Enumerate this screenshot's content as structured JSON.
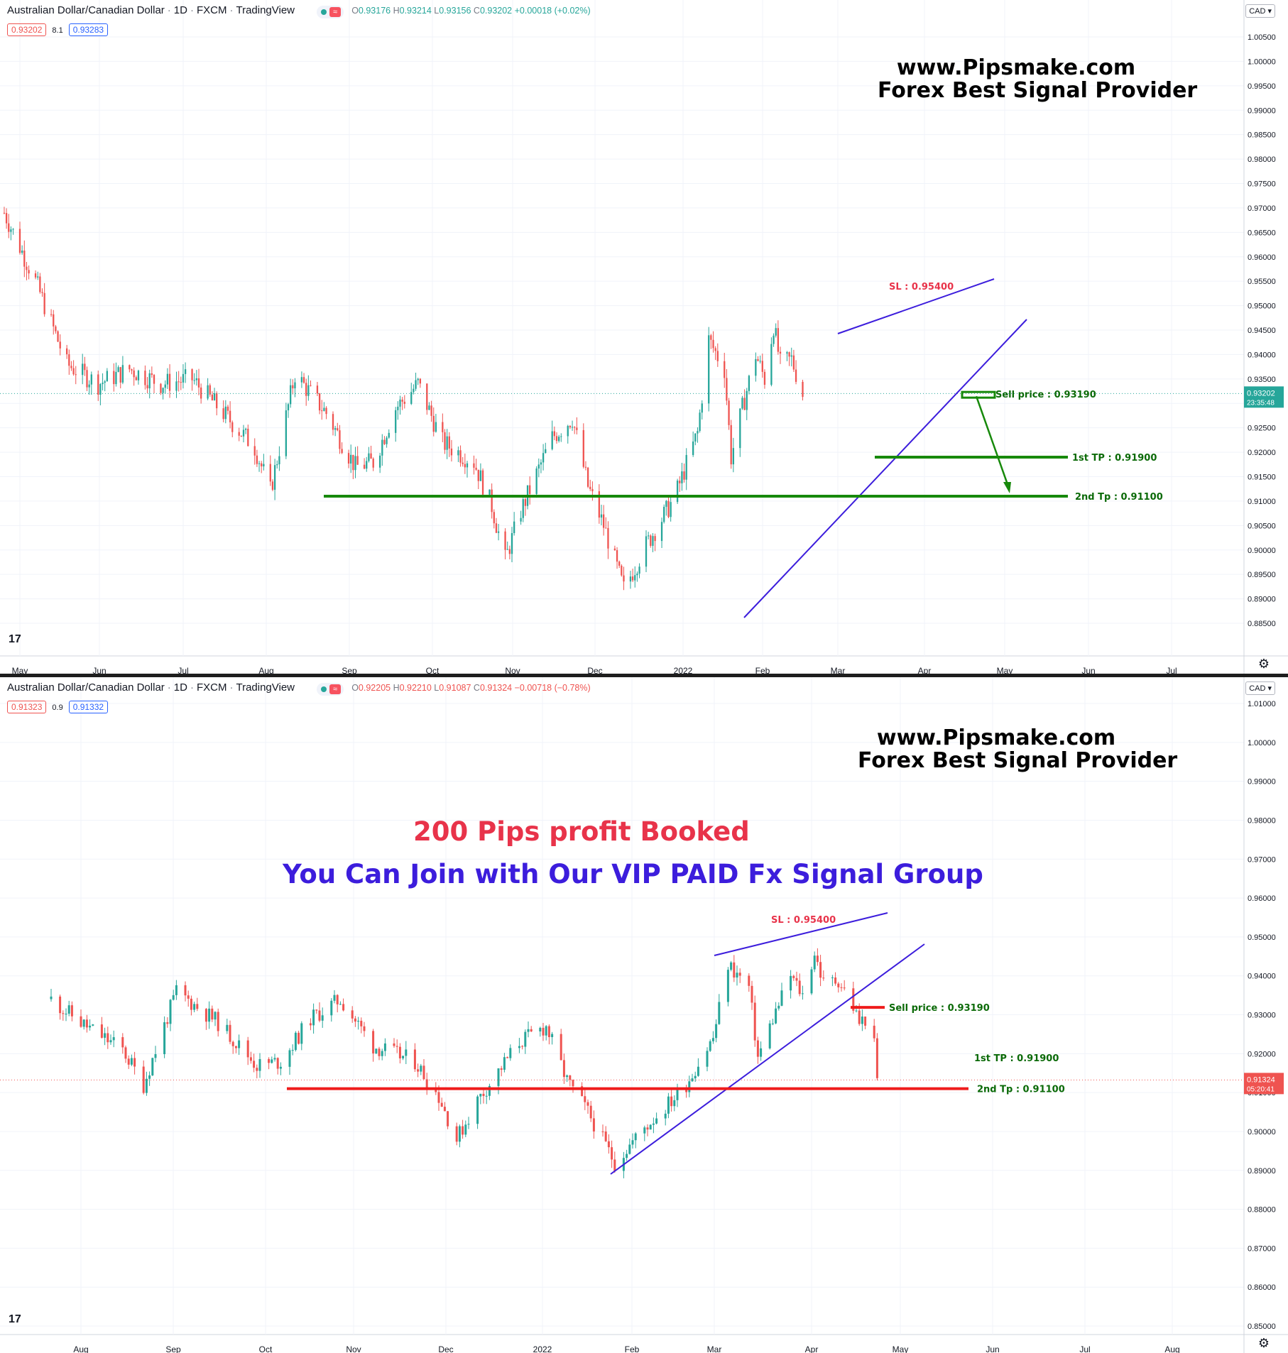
{
  "colors": {
    "up": "#26a69a",
    "down": "#ef5350",
    "trend": "#3c1ddc",
    "target_top": "#17890b",
    "target_bottom": "#ef1c1c",
    "sl": "#e8334a",
    "tp_text": "#0b6a08",
    "grid": "#f0f3fa"
  },
  "top": {
    "header": {
      "symbol": "Australian Dollar/Canadian Dollar",
      "interval": "1D",
      "exchange": "FXCM",
      "platform": "TradingView",
      "pill": "≈",
      "o": "O",
      "o_val": "0.93176",
      "h": "H",
      "h_val": "0.93214",
      "l": "L",
      "l_val": "0.93156",
      "c": "C",
      "c_val": "0.93202",
      "chg": "+0.00018 (+0.02%)"
    },
    "bid": "0.93202",
    "spread": "8.1",
    "ask": "0.93283",
    "currency": "CAD ▾",
    "brand_line1": "www.Pipsmake.com",
    "brand_line2": "Forex Best Signal Provider",
    "last_price": "0.93202",
    "countdown": "23:35:48",
    "ann": {
      "sl": "SL :  0.95400",
      "sell": "Sell  price : 0.93190",
      "tp1": "1st TP : 0.91900",
      "tp2": "2nd Tp : 0.91100"
    }
  },
  "bottom": {
    "header": {
      "symbol": "Australian Dollar/Canadian Dollar",
      "interval": "1D",
      "exchange": "FXCM",
      "platform": "TradingView",
      "pill": "≈",
      "o": "O",
      "o_val": "0.92205",
      "h": "H",
      "h_val": "0.92210",
      "l": "L",
      "l_val": "0.91087",
      "c": "C",
      "c_val": "0.91324",
      "chg": "−0.00718 (−0.78%)"
    },
    "bid": "0.91323",
    "spread": "0.9",
    "ask": "0.91332",
    "currency": "CAD ▾",
    "brand_line1": "www.Pipsmake.com",
    "brand_line2": "Forex Best Signal Provider",
    "promo1": "200 Pips profit Booked",
    "promo2": "You Can Join with Our VIP PAID Fx Signal Group",
    "last_price": "0.91324",
    "countdown": "05:20:41",
    "ann": {
      "sl": "SL :  0.95400",
      "sell": "Sell  price : 0.93190",
      "tp1": "1st TP : 0.91900",
      "tp2": "2nd Tp : 0.91100"
    }
  },
  "tv_logo": "17",
  "gear_icon": "⚙",
  "chart_data": [
    {
      "type": "candlestick",
      "title": "Australian Dollar/Canadian Dollar · 1D · FXCM",
      "y_ticks": [
        "1.00500",
        "1.00000",
        "0.99500",
        "0.99000",
        "0.98500",
        "0.98000",
        "0.97500",
        "0.97000",
        "0.96500",
        "0.96000",
        "0.95500",
        "0.95000",
        "0.94500",
        "0.94000",
        "0.93500",
        "0.93000",
        "0.92500",
        "0.92000",
        "0.91500",
        "0.91000",
        "0.90500",
        "0.90000",
        "0.89500",
        "0.89000",
        "0.88500"
      ],
      "x_ticks": [
        "May",
        "Jun",
        "Jul",
        "Aug",
        "Sep",
        "Oct",
        "Nov",
        "Dec",
        "2022",
        "Feb",
        "Mar",
        "Apr",
        "May",
        "Jun",
        "Jul"
      ],
      "ylim": [
        0.8834,
        1.0087
      ],
      "series": [
        {
          "path": [
            [
              "2021-04-26",
              0.969
            ],
            [
              "2021-05-10",
              0.955
            ],
            [
              "2021-05-24",
              0.938
            ],
            [
              "2021-06-07",
              0.934
            ],
            [
              "2021-06-21",
              0.937
            ],
            [
              "2021-07-05",
              0.934
            ],
            [
              "2021-07-19",
              0.935
            ],
            [
              "2021-08-02",
              0.928
            ],
            [
              "2021-08-16",
              0.921
            ],
            [
              "2021-08-23",
              0.912
            ],
            [
              "2021-09-03",
              0.936
            ],
            [
              "2021-09-17",
              0.928
            ],
            [
              "2021-09-30",
              0.917
            ],
            [
              "2021-10-08",
              0.918
            ],
            [
              "2021-10-18",
              0.929
            ],
            [
              "2021-10-28",
              0.934
            ],
            [
              "2021-11-08",
              0.922
            ],
            [
              "2021-11-22",
              0.918
            ],
            [
              "2021-11-30",
              0.909
            ],
            [
              "2021-12-06",
              0.898
            ],
            [
              "2021-12-13",
              0.908
            ],
            [
              "2021-12-27",
              0.923
            ],
            [
              "2022-01-05",
              0.927
            ],
            [
              "2022-01-12",
              0.913
            ],
            [
              "2022-01-19",
              0.905
            ],
            [
              "2022-01-28",
              0.892
            ],
            [
              "2022-02-07",
              0.901
            ],
            [
              "2022-02-20",
              0.911
            ],
            [
              "2022-03-02",
              0.924
            ],
            [
              "2022-03-07",
              0.943
            ],
            [
              "2022-03-14",
              0.937
            ],
            [
              "2022-03-17",
              0.919
            ],
            [
              "2022-03-22",
              0.929
            ],
            [
              "2022-03-28",
              0.94
            ],
            [
              "2022-04-01",
              0.935
            ],
            [
              "2022-04-05",
              0.946
            ],
            [
              "2022-04-08",
              0.938
            ],
            [
              "2022-04-13",
              0.939
            ],
            [
              "2022-04-18",
              0.932
            ]
          ]
        }
      ],
      "annotations": {
        "stop_loss": 0.954,
        "sell_price": 0.9319,
        "tp1": 0.919,
        "tp2": 0.911,
        "last": 0.93202
      }
    },
    {
      "type": "candlestick",
      "title": "Australian Dollar/Canadian Dollar · 1D · FXCM",
      "y_ticks": [
        "1.01000",
        "1.00000",
        "0.99000",
        "0.98000",
        "0.97000",
        "0.96000",
        "0.95000",
        "0.94000",
        "0.93000",
        "0.92000",
        "0.91000",
        "0.90000",
        "0.89000",
        "0.88000",
        "0.87000",
        "0.86000",
        "0.85000"
      ],
      "x_ticks": [
        "Aug",
        "Sep",
        "Oct",
        "Nov",
        "Dec",
        "2022",
        "Feb",
        "Mar",
        "Apr",
        "May",
        "Jun",
        "Jul",
        "Aug"
      ],
      "ylim": [
        0.8486,
        1.0127
      ],
      "series": [
        {
          "path": [
            [
              "2021-07-23",
              0.934
            ],
            [
              "2021-08-02",
              0.928
            ],
            [
              "2021-08-16",
              0.921
            ],
            [
              "2021-08-23",
              0.912
            ],
            [
              "2021-09-03",
              0.936
            ],
            [
              "2021-09-17",
              0.928
            ],
            [
              "2021-09-30",
              0.917
            ],
            [
              "2021-10-08",
              0.918
            ],
            [
              "2021-10-18",
              0.929
            ],
            [
              "2021-10-28",
              0.934
            ],
            [
              "2021-11-08",
              0.922
            ],
            [
              "2021-11-22",
              0.918
            ],
            [
              "2021-11-30",
              0.909
            ],
            [
              "2021-12-06",
              0.898
            ],
            [
              "2021-12-13",
              0.908
            ],
            [
              "2021-12-27",
              0.923
            ],
            [
              "2022-01-05",
              0.927
            ],
            [
              "2022-01-12",
              0.913
            ],
            [
              "2022-01-19",
              0.905
            ],
            [
              "2022-01-28",
              0.892
            ],
            [
              "2022-02-07",
              0.901
            ],
            [
              "2022-02-20",
              0.911
            ],
            [
              "2022-03-02",
              0.924
            ],
            [
              "2022-03-07",
              0.943
            ],
            [
              "2022-03-14",
              0.937
            ],
            [
              "2022-03-17",
              0.919
            ],
            [
              "2022-03-22",
              0.929
            ],
            [
              "2022-03-28",
              0.94
            ],
            [
              "2022-04-01",
              0.935
            ],
            [
              "2022-04-05",
              0.946
            ],
            [
              "2022-04-08",
              0.938
            ],
            [
              "2022-04-13",
              0.939
            ],
            [
              "2022-04-18",
              0.932
            ],
            [
              "2022-04-20",
              0.928
            ],
            [
              "2022-04-22",
              0.929
            ],
            [
              "2022-04-25",
              0.922
            ],
            [
              "2022-04-26",
              0.913
            ]
          ]
        }
      ],
      "annotations": {
        "stop_loss": 0.954,
        "sell_price": 0.9319,
        "tp1": 0.919,
        "tp2": 0.911,
        "last": 0.91324
      }
    }
  ]
}
